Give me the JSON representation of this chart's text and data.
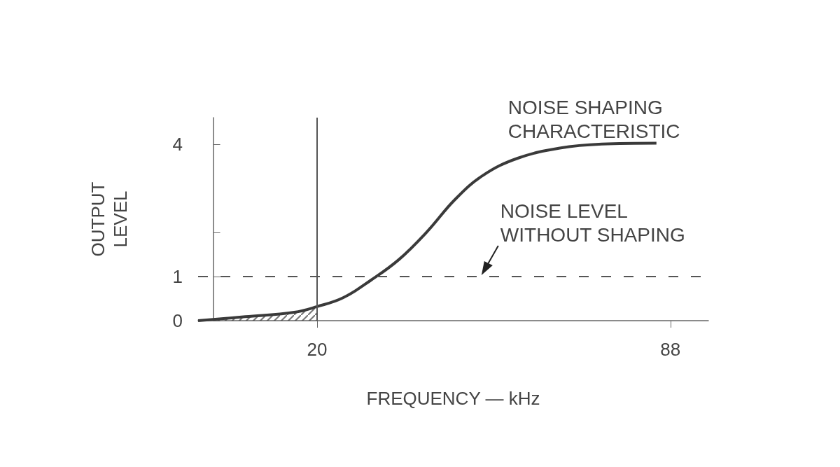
{
  "chart_data": {
    "type": "line",
    "xlabel": "FREQUENCY — kHz",
    "ylabel": "OUTPUT\nLEVEL",
    "xlim": [
      -2.9,
      95.3
    ],
    "xticks": [
      20,
      88
    ],
    "ylim": [
      0,
      4.6
    ],
    "yticks": [
      0,
      1,
      {
        "value": 2,
        "label": null
      },
      4
    ],
    "series": [
      {
        "color": "#3a3a3a",
        "x": [
          -2.9,
          6.2,
          15.6,
          20,
          25,
          30.4,
          35.8,
          41.2,
          46.5,
          51.9,
          58.6,
          66.7,
          74.8,
          85.3
        ],
        "values": [
          0,
          0.09,
          0.19,
          0.32,
          0.52,
          0.92,
          1.39,
          2.02,
          2.74,
          3.29,
          3.68,
          3.91,
          4.0,
          4.02
        ]
      },
      {
        "type": "area",
        "color": "#3a3a3a",
        "x": [
          -2.9,
          6.2,
          15.6,
          20
        ],
        "values": [
          0,
          0.09,
          0.19,
          0.32
        ]
      }
    ],
    "ref_lines": [
      {
        "axis": "y",
        "value": 1,
        "label": null,
        "line_style": "dashed",
        "color": "#555555"
      },
      {
        "axis": "x",
        "value": 20,
        "label": null,
        "line_style": "solid",
        "color": "#555555"
      }
    ],
    "annotations": [
      {
        "text": "NOISE SHAPING\nCHARACTERISTIC",
        "x": 85.3,
        "y": 4.02
      },
      {
        "text": "NOISE LEVEL\nWITHOUT SHAPING",
        "x": 51.9,
        "y": 1
      }
    ],
    "marker": "none",
    "grid": false
  }
}
